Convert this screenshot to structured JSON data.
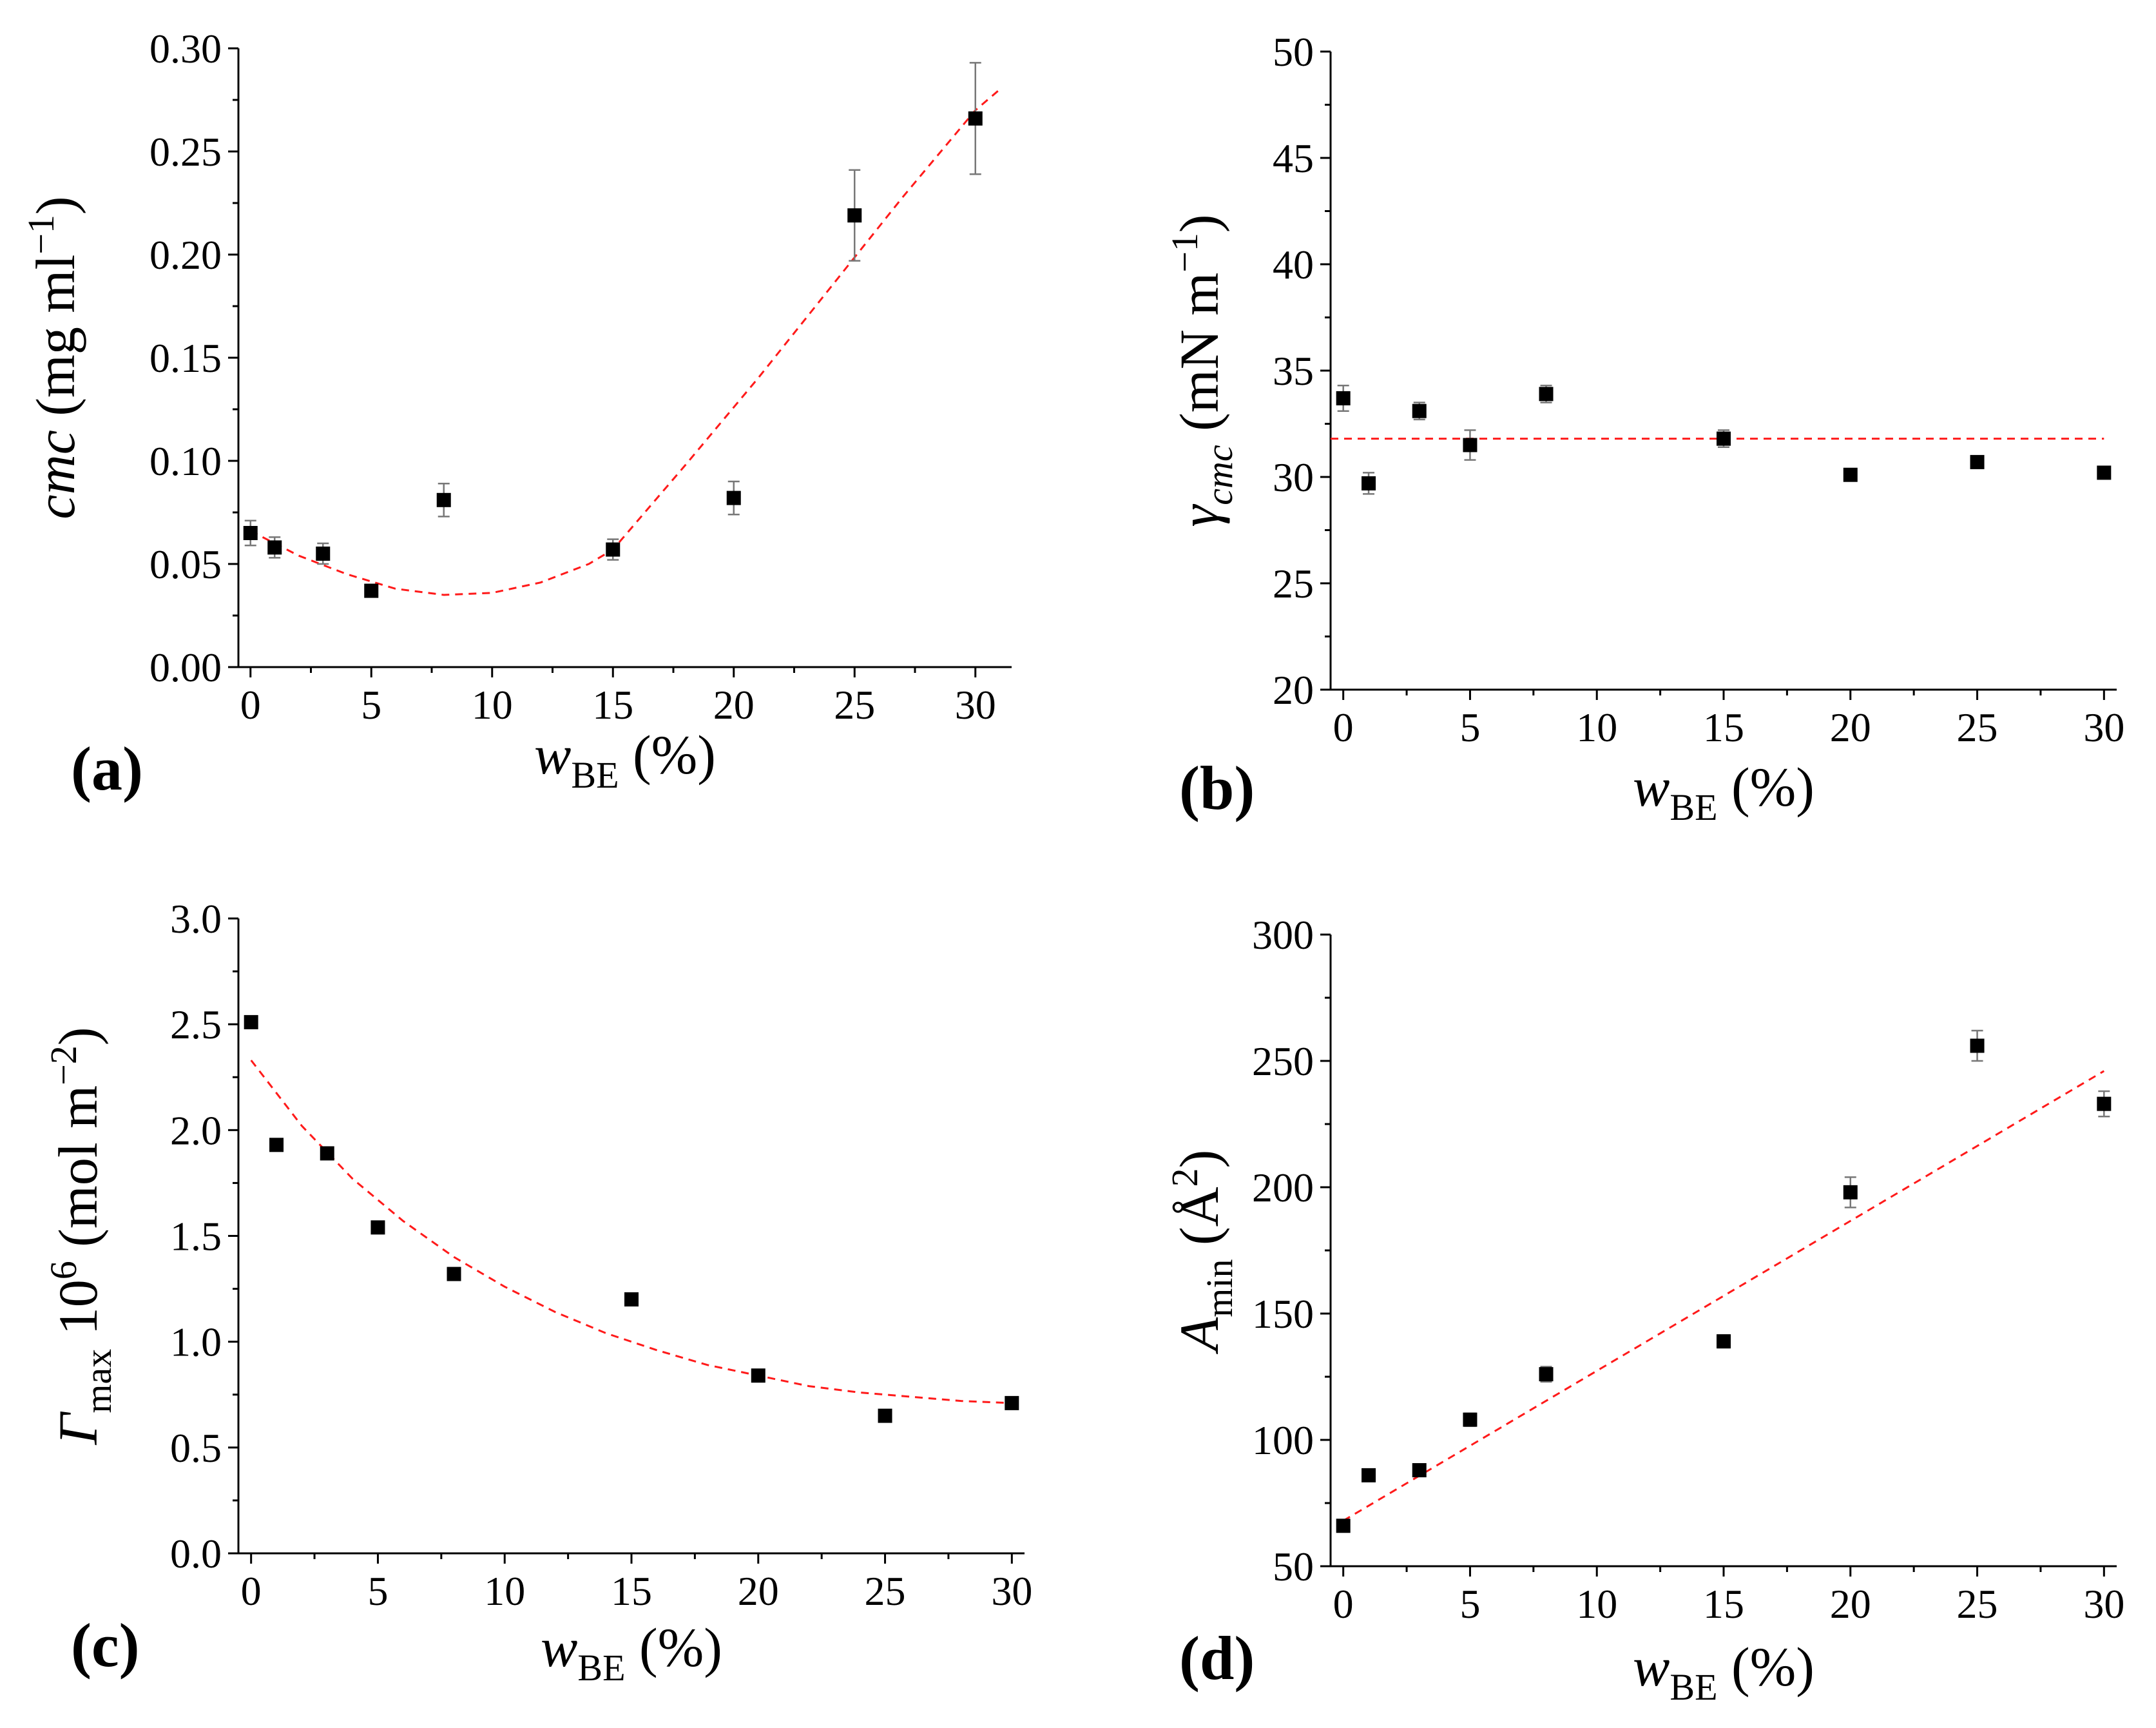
{
  "figure": "four-panel scatter plot of surfactant properties versus w_BE",
  "colors": {
    "points": "#000000",
    "fit": "#ff1a1a",
    "errorbars": "#777777"
  },
  "chart_data": [
    {
      "type": "scatter",
      "panel_label": "(a)",
      "ylabel_main": "cmc",
      "ylabel_rest": " (mg ml",
      "ylabel_sup": "−1",
      "ylabel_close": ")",
      "xlabel_main": "w",
      "xlabel_sub": "BE",
      "xlabel_rest": " (%)",
      "xlim": [
        -0.5,
        31.5
      ],
      "ylim": [
        0,
        0.3
      ],
      "xticks": [
        0,
        5,
        10,
        15,
        20,
        25,
        30
      ],
      "xtick_labels": [
        "0",
        "5",
        "10",
        "15",
        "20",
        "25",
        "30"
      ],
      "yticks": [
        0,
        0.05,
        0.1,
        0.15,
        0.2,
        0.25,
        0.3
      ],
      "ytick_labels": [
        "0.00",
        "0.05",
        "0.10",
        "0.15",
        "0.20",
        "0.25",
        "0.30"
      ],
      "yminor": 0.025,
      "series": [
        {
          "name": "cmc",
          "x": [
            0,
            1,
            3,
            5,
            8,
            15,
            20,
            25,
            30
          ],
          "y": [
            0.065,
            0.058,
            0.055,
            0.037,
            0.081,
            0.057,
            0.082,
            0.219,
            0.266
          ],
          "err": [
            0.006,
            0.005,
            0.005,
            0.003,
            0.008,
            0.005,
            0.008,
            0.022,
            0.027
          ]
        }
      ],
      "fit": {
        "x": [
          0,
          2,
          4,
          6,
          8,
          10,
          12,
          14,
          15,
          18,
          21,
          24,
          27,
          30,
          31
        ],
        "y": [
          0.066,
          0.054,
          0.045,
          0.038,
          0.035,
          0.036,
          0.041,
          0.05,
          0.057,
          0.098,
          0.14,
          0.184,
          0.228,
          0.27,
          0.28
        ]
      }
    },
    {
      "type": "scatter",
      "panel_label": "(b)",
      "ylabel_main": "γ",
      "ylabel_sub": "cmc",
      "ylabel_rest": " (mN m",
      "ylabel_sup": "−1",
      "ylabel_close": ")",
      "xlabel_main": "w",
      "xlabel_sub": "BE",
      "xlabel_rest": " (%)",
      "xlim": [
        -0.5,
        30.5
      ],
      "ylim": [
        20,
        50
      ],
      "xticks": [
        0,
        5,
        10,
        15,
        20,
        25,
        30
      ],
      "xtick_labels": [
        "0",
        "5",
        "10",
        "15",
        "20",
        "25",
        "30"
      ],
      "yticks": [
        20,
        25,
        30,
        35,
        40,
        45,
        50
      ],
      "ytick_labels": [
        "20",
        "25",
        "30",
        "35",
        "40",
        "45",
        "50"
      ],
      "yminor": 2.5,
      "series": [
        {
          "name": "gamma_cmc",
          "x": [
            0,
            1,
            3,
            5,
            8,
            15,
            20,
            25,
            30
          ],
          "y": [
            33.7,
            29.7,
            33.1,
            31.5,
            33.9,
            31.8,
            30.1,
            30.7,
            30.2
          ],
          "err": [
            0.6,
            0.5,
            0.4,
            0.7,
            0.4,
            0.4,
            0.2,
            0.2,
            0.2
          ]
        }
      ],
      "fit": {
        "x": [
          -0.5,
          30
        ],
        "y": [
          31.8,
          31.8
        ]
      }
    },
    {
      "type": "scatter",
      "panel_label": "(c)",
      "ylabel_main": "Γ",
      "ylabel_sub": "max",
      "ylabel_mid": " 10",
      "ylabel_sup1": "6",
      "ylabel_rest": " (mol m",
      "ylabel_sup": "−2",
      "ylabel_close": ")",
      "xlabel_main": "w",
      "xlabel_sub": "BE",
      "xlabel_rest": " (%)",
      "xlim": [
        -0.5,
        30.5
      ],
      "ylim": [
        0,
        3.0
      ],
      "xticks": [
        0,
        5,
        10,
        15,
        20,
        25,
        30
      ],
      "xtick_labels": [
        "0",
        "5",
        "10",
        "15",
        "20",
        "25",
        "30"
      ],
      "yticks": [
        0,
        0.5,
        1.0,
        1.5,
        2.0,
        2.5,
        3.0
      ],
      "ytick_labels": [
        "0.0",
        "0.5",
        "1.0",
        "1.5",
        "2.0",
        "2.5",
        "3.0"
      ],
      "yminor": 0.25,
      "series": [
        {
          "name": "Gamma_max",
          "x": [
            0,
            1,
            3,
            5,
            8,
            15,
            20,
            25,
            30
          ],
          "y": [
            2.51,
            1.93,
            1.89,
            1.54,
            1.32,
            1.2,
            0.84,
            0.65,
            0.71
          ],
          "err": [
            0.02,
            0.02,
            0.02,
            0.02,
            0.02,
            0.02,
            0.02,
            0.02,
            0.02
          ]
        }
      ],
      "fit": {
        "x": [
          0,
          2,
          4,
          6,
          8,
          10,
          12,
          14,
          16,
          18,
          20,
          22,
          24,
          26,
          28,
          30
        ],
        "y": [
          2.33,
          2.02,
          1.77,
          1.57,
          1.4,
          1.26,
          1.14,
          1.04,
          0.96,
          0.89,
          0.84,
          0.79,
          0.76,
          0.74,
          0.72,
          0.71
        ]
      }
    },
    {
      "type": "scatter",
      "panel_label": "(d)",
      "ylabel_main": "A",
      "ylabel_sub": "min",
      "ylabel_rest": " (Å",
      "ylabel_sup": "2",
      "ylabel_close": ")",
      "xlabel_main": "w",
      "xlabel_sub": "BE",
      "xlabel_rest": " (%)",
      "xlim": [
        -0.5,
        30.5
      ],
      "ylim": [
        50,
        300
      ],
      "xticks": [
        0,
        5,
        10,
        15,
        20,
        25,
        30
      ],
      "xtick_labels": [
        "0",
        "5",
        "10",
        "15",
        "20",
        "25",
        "30"
      ],
      "yticks": [
        50,
        100,
        150,
        200,
        250,
        300
      ],
      "ytick_labels": [
        "50",
        "100",
        "150",
        "200",
        "250",
        "300"
      ],
      "yminor": 25,
      "series": [
        {
          "name": "A_min",
          "x": [
            0,
            1,
            3,
            5,
            8,
            15,
            20,
            25,
            30
          ],
          "y": [
            66,
            86,
            88,
            108,
            126,
            139,
            198,
            256,
            233
          ],
          "err": [
            1.5,
            1.5,
            1.5,
            2.5,
            3,
            2.5,
            6,
            6,
            5
          ]
        }
      ],
      "fit": {
        "x": [
          0,
          30
        ],
        "y": [
          68,
          246
        ]
      }
    }
  ]
}
